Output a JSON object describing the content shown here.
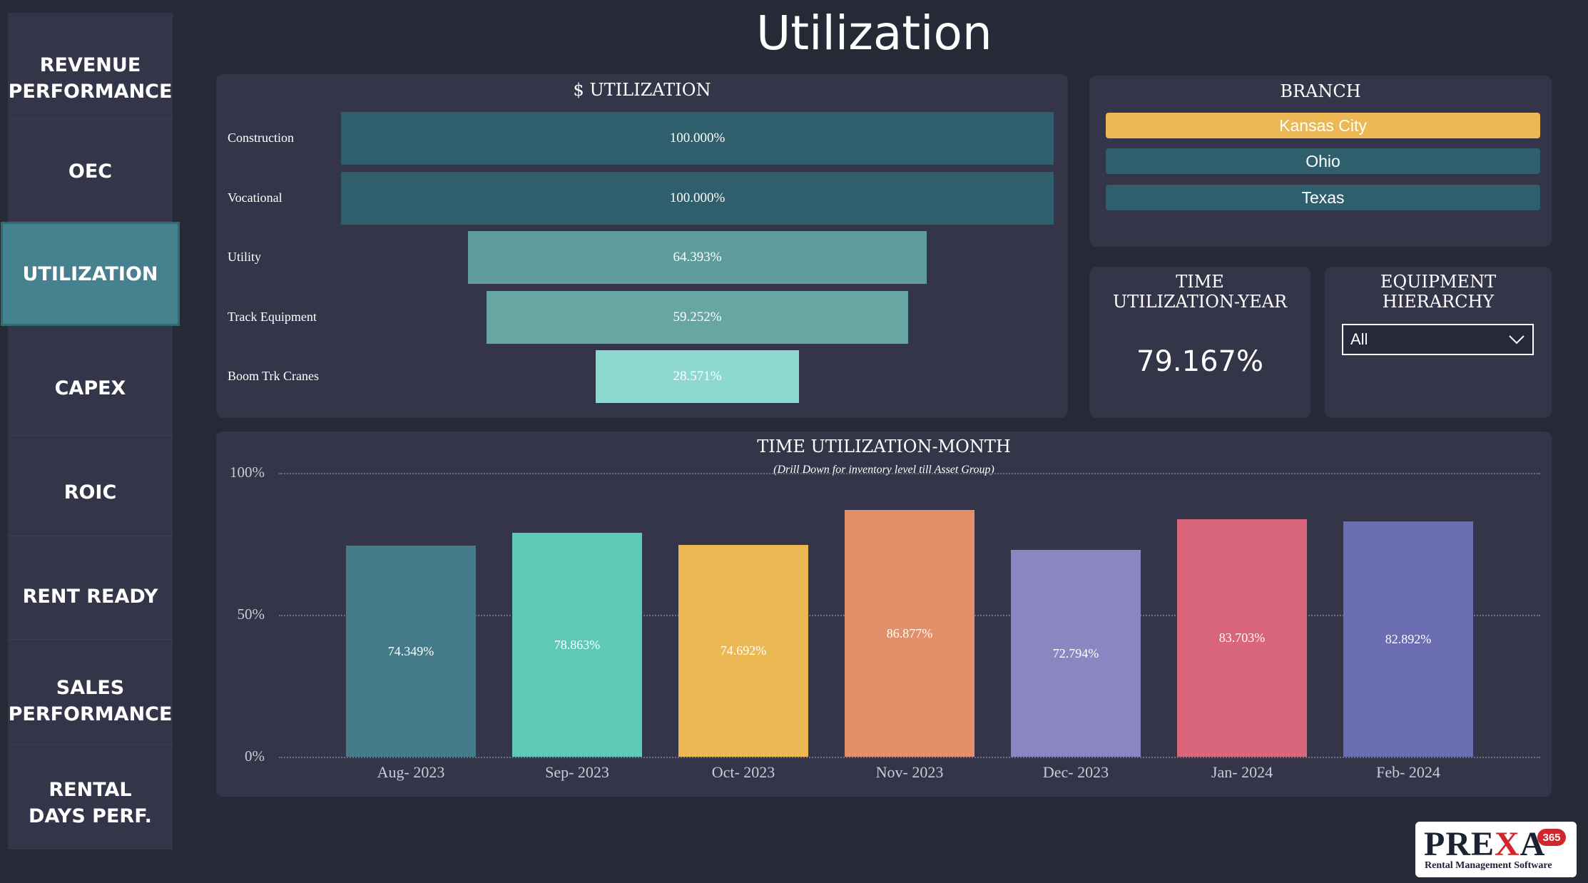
{
  "page": {
    "title": "Utilization"
  },
  "sidebar": {
    "items": [
      {
        "label": "REVENUE PERFORMANCE",
        "active": false
      },
      {
        "label": "OEC",
        "active": false
      },
      {
        "label": "UTILIZATION",
        "active": true
      },
      {
        "label": "CAPEX",
        "active": false
      },
      {
        "label": "ROIC",
        "active": false
      },
      {
        "label": "RENT READY",
        "active": false
      },
      {
        "label": "SALES PERFORMANCE",
        "active": false
      },
      {
        "label": "RENTAL DAYS PERF.",
        "active": false
      }
    ],
    "colors": {
      "background": "#343548",
      "active": "#46818f"
    }
  },
  "dollar_utilization": {
    "title": "$ UTILIZATION",
    "rows": [
      {
        "label": "Construction",
        "value_text": "100.000%",
        "value": 100.0,
        "color": "#2f5f6c"
      },
      {
        "label": "Vocational",
        "value_text": "100.000%",
        "value": 100.0,
        "color": "#2f5f6c"
      },
      {
        "label": "Utility",
        "value_text": "64.393%",
        "value": 64.393,
        "color": "#5f9c9d"
      },
      {
        "label": "Track Equipment",
        "value_text": "59.252%",
        "value": 59.252,
        "color": "#68a6a4"
      },
      {
        "label": "Boom Trk Cranes",
        "value_text": "28.571%",
        "value": 28.571,
        "color": "#8dd9d0"
      }
    ]
  },
  "branch": {
    "title": "BRANCH",
    "options": [
      {
        "label": "Kansas City",
        "selected": true
      },
      {
        "label": "Ohio",
        "selected": false
      },
      {
        "label": "Texas",
        "selected": false
      }
    ],
    "colors": {
      "selected": "#ebb853",
      "unselected": "#2f5f6c"
    }
  },
  "time_utilization_year": {
    "title_line1": "TIME",
    "title_line2": "UTILIZATION-YEAR",
    "value": "79.167%"
  },
  "equipment_hierarchy": {
    "title_line1": "EQUIPMENT",
    "title_line2": "HIERARCHY",
    "selected": "All",
    "icon": "chevron-down-icon"
  },
  "chart_data": {
    "type": "bar",
    "title": "TIME UTILIZATION-MONTH",
    "subtitle": "(Drill Down for inventory level till Asset Group)",
    "categories": [
      "Aug- 2023",
      "Sep- 2023",
      "Oct- 2023",
      "Nov- 2023",
      "Dec- 2023",
      "Jan- 2024",
      "Feb- 2024"
    ],
    "values": [
      74.349,
      78.863,
      74.692,
      86.877,
      72.794,
      83.703,
      82.892
    ],
    "value_labels": [
      "74.349%",
      "78.863%",
      "74.692%",
      "86.877%",
      "72.794%",
      "83.703%",
      "82.892%"
    ],
    "colors": [
      "#457b89",
      "#5fc9b8",
      "#ebb853",
      "#e2906a",
      "#8986c2",
      "#d9667a",
      "#6b6db3"
    ],
    "ylim": [
      0,
      100
    ],
    "yticks": [
      "0%",
      "50%",
      "100%"
    ],
    "grid": true
  },
  "logo": {
    "word_left": "PRE",
    "word_x": "X",
    "word_right": "A",
    "badge": "365",
    "tagline": "Rental Management Software"
  }
}
